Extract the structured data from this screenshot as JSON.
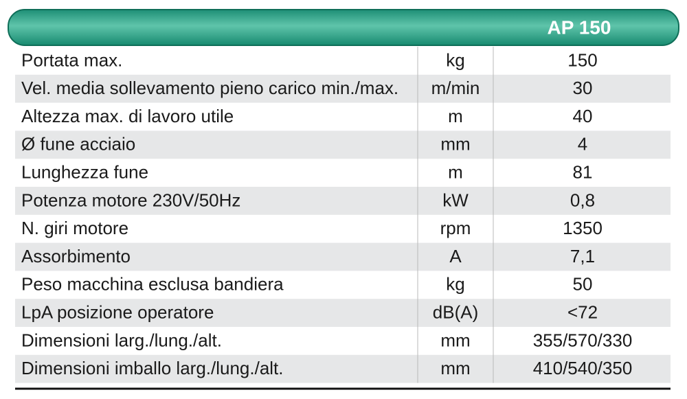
{
  "header": {
    "title": "AP 150"
  },
  "table": {
    "rows": [
      [
        "Portata max.",
        "kg",
        "150"
      ],
      [
        "Vel. media sollevamento pieno carico min./max.",
        "m/min",
        "30"
      ],
      [
        "Altezza max. di lavoro utile",
        "m",
        "40"
      ],
      [
        "Ø fune acciaio",
        "mm",
        "4"
      ],
      [
        "Lunghezza fune",
        "m",
        "81"
      ],
      [
        "Potenza motore 230V/50Hz",
        "kW",
        "0,8"
      ],
      [
        "N. giri motore",
        "rpm",
        "1350"
      ],
      [
        "Assorbimento",
        "A",
        "7,1"
      ],
      [
        "Peso macchina esclusa bandiera",
        "kg",
        "50"
      ],
      [
        "LpA posizione operatore",
        "dB(A)",
        "<72"
      ],
      [
        "Dimensioni larg./lung./alt.",
        "mm",
        "355/570/330"
      ],
      [
        "Dimensioni imballo larg./lung./alt.",
        "mm",
        "410/540/350"
      ]
    ]
  }
}
